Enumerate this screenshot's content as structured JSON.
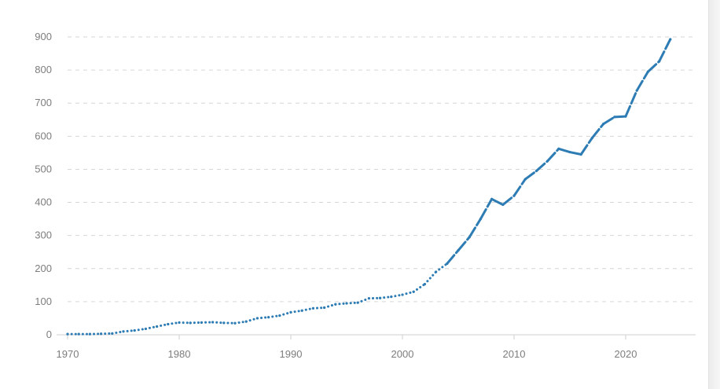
{
  "chart_data": {
    "type": "line",
    "title": "",
    "xlabel": "",
    "ylabel": "",
    "xlim": [
      1970,
      2024
    ],
    "ylim": [
      0,
      900
    ],
    "grid": true,
    "x_ticks": [
      "1970",
      "1980",
      "1990",
      "2000",
      "2010",
      "2020"
    ],
    "y_ticks": [
      "0",
      "100",
      "200",
      "300",
      "400",
      "500",
      "600",
      "700",
      "800",
      "900"
    ],
    "colors": {
      "series": "#2e7cb4",
      "grid": "#d6d6d6",
      "tick_text": "#7d7d7d"
    },
    "series": [
      {
        "x": [
          1970,
          1971,
          1972,
          1973,
          1974,
          1975,
          1976,
          1977,
          1978,
          1979,
          1980,
          1981,
          1982,
          1983,
          1984,
          1985,
          1986,
          1987,
          1988,
          1989,
          1990,
          1991,
          1992,
          1993,
          1994,
          1995,
          1996,
          1997,
          1998,
          1999,
          2000,
          2001,
          2002,
          2003,
          2004,
          2005,
          2006,
          2007,
          2008,
          2009,
          2010,
          2011,
          2012,
          2013,
          2014,
          2015,
          2016,
          2017,
          2018,
          2019,
          2020,
          2021,
          2022,
          2023,
          2024
        ],
        "values": [
          2,
          2,
          2,
          3,
          4,
          10,
          13,
          18,
          25,
          32,
          37,
          36,
          37,
          38,
          36,
          35,
          40,
          50,
          53,
          58,
          68,
          73,
          80,
          82,
          92,
          95,
          97,
          110,
          111,
          115,
          121,
          130,
          153,
          190,
          215,
          255,
          295,
          350,
          410,
          393,
          420,
          470,
          495,
          525,
          562,
          552,
          545,
          595,
          637,
          658,
          660,
          738,
          795,
          826,
          893
        ],
        "segment_styles": {
          "dotted": [
            [
              1970,
              2004
            ]
          ],
          "dashed": [
            [
              2004,
              2024
            ]
          ]
        }
      }
    ]
  }
}
